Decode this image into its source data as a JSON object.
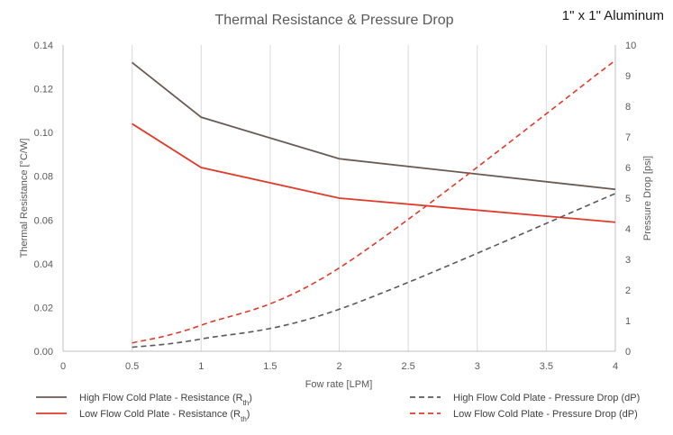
{
  "chart_data": {
    "type": "line",
    "title": "Thermal Resistance & Pressure Drop",
    "corner_label": "1\" x 1\" Aluminum",
    "xlabel": "Fow rate [LPM]",
    "ylabel_left": "Thermal Resistance [°C/W]",
    "ylabel_right": "Pressure Drop [psi]",
    "xlim": [
      0,
      4
    ],
    "ylim_left": [
      0,
      0.14
    ],
    "ylim_right": [
      0,
      10
    ],
    "x_ticks": [
      "0",
      "0.5",
      "1",
      "1.5",
      "2",
      "2.5",
      "3",
      "3.5",
      "4"
    ],
    "y_left_ticks": [
      "0.00",
      "0.02",
      "0.04",
      "0.06",
      "0.08",
      "0.10",
      "0.12",
      "0.14"
    ],
    "y_right_ticks": [
      "0",
      "1",
      "2",
      "3",
      "4",
      "5",
      "6",
      "7",
      "8",
      "9",
      "10"
    ],
    "grid": "vertical",
    "legend_position": "bottom",
    "x": [
      0.5,
      1,
      2,
      4
    ],
    "series": [
      {
        "name": "High Flow Cold Plate - Resistance (R",
        "name_sub": "th",
        "name_suffix": ")",
        "axis": "left",
        "style": "solid",
        "color": "#6b5a52",
        "values": [
          0.132,
          0.107,
          0.088,
          0.074
        ]
      },
      {
        "name": "Low Flow Cold Plate - Resistance  (R",
        "name_sub": "th",
        "name_suffix": ")",
        "axis": "left",
        "style": "solid",
        "color": "#e03a2a",
        "values": [
          0.104,
          0.084,
          0.07,
          0.059
        ]
      },
      {
        "name": "High Flow Cold Plate - Pressure Drop (dP)",
        "name_sub": "",
        "name_suffix": "",
        "axis": "right",
        "style": "dashed",
        "color": "#595959",
        "values": [
          0.13,
          0.4,
          1.37,
          5.15
        ]
      },
      {
        "name": "Low Flow Cold Plate - Pressure Drop (dP)",
        "name_sub": "",
        "name_suffix": "",
        "axis": "right",
        "style": "dashed",
        "color": "#e03a2a",
        "values": [
          0.27,
          0.85,
          2.72,
          9.5
        ]
      }
    ]
  }
}
